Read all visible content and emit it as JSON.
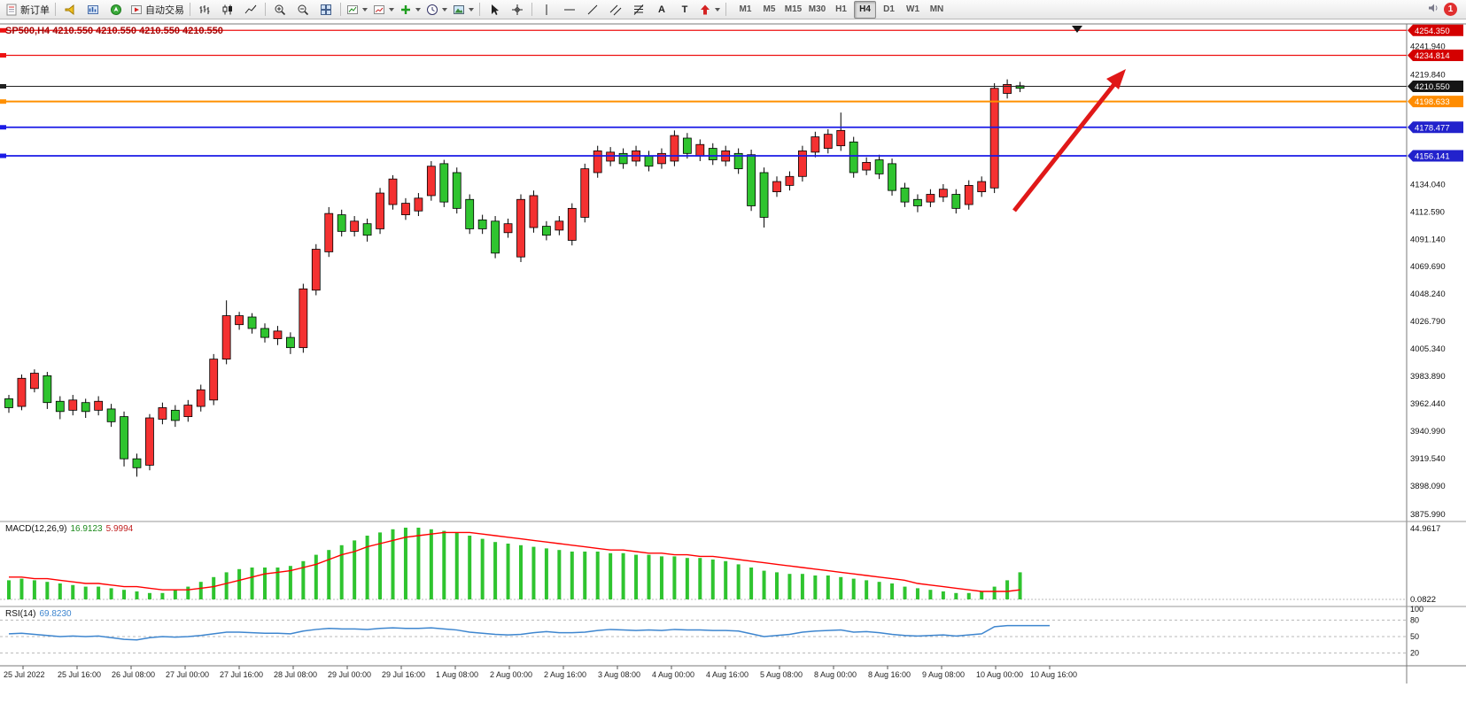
{
  "toolbar": {
    "new_order_label": "新订单",
    "auto_trading_label": "自动交易",
    "text_tool": "A",
    "label_tool": "T",
    "timeframes": [
      "M1",
      "M5",
      "M15",
      "M30",
      "H1",
      "H4",
      "D1",
      "W1",
      "MN"
    ],
    "active_timeframe": "H4",
    "notification_count": "1",
    "icons": [
      "new-order-icon",
      "horn-icon",
      "market-watch-icon",
      "navigator-icon",
      "auto-trading-icon",
      "bar-chart-icon",
      "candlestick-chart-icon",
      "line-chart-icon",
      "zoom-in-icon",
      "zoom-out-icon",
      "tile-windows-icon",
      "new-chart-icon",
      "profiles-icon",
      "indicators-plus-icon",
      "periods-clock-icon",
      "templates-icon",
      "cursor-icon",
      "crosshair-icon",
      "vertical-line-icon",
      "horizontal-line-icon",
      "trend-line-icon",
      "channel-icon",
      "fibonacci-icon",
      "text-icon",
      "label-icon",
      "shapes-arrow-icon",
      "speaker-icon"
    ]
  },
  "chart_data": {
    "type": "candlestick",
    "title": "SP500,H4 4210.550 4210.550 4210.550 4210.550",
    "bull_color": "#f43131",
    "bear_color": "#2fc42f",
    "arrow_color": "#e01818",
    "candles": [
      [
        3966,
        3969,
        3955,
        3959
      ],
      [
        3960,
        3985,
        3957,
        3982
      ],
      [
        3974,
        3989,
        3971,
        3986
      ],
      [
        3984,
        3987,
        3958,
        3963
      ],
      [
        3964,
        3968,
        3950,
        3956
      ],
      [
        3957,
        3969,
        3953,
        3965
      ],
      [
        3963,
        3966,
        3951,
        3956
      ],
      [
        3957,
        3968,
        3953,
        3964
      ],
      [
        3958,
        3962,
        3944,
        3948
      ],
      [
        3952,
        3956,
        3913,
        3919
      ],
      [
        3919,
        3923,
        3905,
        3912
      ],
      [
        3914,
        3954,
        3910,
        3951
      ],
      [
        3950,
        3963,
        3946,
        3959
      ],
      [
        3957,
        3961,
        3944,
        3949
      ],
      [
        3952,
        3965,
        3948,
        3961
      ],
      [
        3960,
        3977,
        3956,
        3973
      ],
      [
        3965,
        4001,
        3961,
        3997
      ],
      [
        3997,
        4043,
        3993,
        4031
      ],
      [
        4024,
        4034,
        4020,
        4031
      ],
      [
        4030,
        4033,
        4017,
        4021
      ],
      [
        4021,
        4025,
        4010,
        4014
      ],
      [
        4013,
        4023,
        4008,
        4019
      ],
      [
        4014,
        4018,
        4001,
        4006
      ],
      [
        4006,
        4056,
        4002,
        4052
      ],
      [
        4051,
        4087,
        4047,
        4083
      ],
      [
        4081,
        4116,
        4077,
        4111
      ],
      [
        4110,
        4114,
        4093,
        4097
      ],
      [
        4097,
        4109,
        4093,
        4105
      ],
      [
        4103,
        4107,
        4089,
        4094
      ],
      [
        4099,
        4131,
        4095,
        4127
      ],
      [
        4118,
        4141,
        4114,
        4138
      ],
      [
        4110,
        4123,
        4106,
        4119
      ],
      [
        4113,
        4127,
        4109,
        4123
      ],
      [
        4125,
        4152,
        4121,
        4148
      ],
      [
        4150,
        4153,
        4116,
        4120
      ],
      [
        4143,
        4147,
        4111,
        4115
      ],
      [
        4122,
        4126,
        4095,
        4099
      ],
      [
        4106,
        4110,
        4095,
        4099
      ],
      [
        4105,
        4109,
        4076,
        4080
      ],
      [
        4096,
        4107,
        4092,
        4103
      ],
      [
        4077,
        4126,
        4073,
        4122
      ],
      [
        4100,
        4129,
        4096,
        4125
      ],
      [
        4101,
        4105,
        4090,
        4094
      ],
      [
        4098,
        4109,
        4094,
        4105
      ],
      [
        4090,
        4119,
        4086,
        4115
      ],
      [
        4108,
        4150,
        4104,
        4146
      ],
      [
        4143,
        4164,
        4139,
        4160
      ],
      [
        4152,
        4163,
        4148,
        4159
      ],
      [
        4158,
        4162,
        4146,
        4150
      ],
      [
        4152,
        4164,
        4148,
        4160
      ],
      [
        4156,
        4160,
        4144,
        4148
      ],
      [
        4150,
        4162,
        4146,
        4158
      ],
      [
        4152,
        4176,
        4148,
        4172
      ],
      [
        4170,
        4174,
        4154,
        4158
      ],
      [
        4156,
        4169,
        4152,
        4165
      ],
      [
        4162,
        4166,
        4149,
        4153
      ],
      [
        4152,
        4164,
        4148,
        4160
      ],
      [
        4158,
        4162,
        4142,
        4146
      ],
      [
        4157,
        4161,
        4113,
        4117
      ],
      [
        4143,
        4147,
        4100,
        4108
      ],
      [
        4128,
        4140,
        4124,
        4136
      ],
      [
        4133,
        4144,
        4129,
        4140
      ],
      [
        4140,
        4164,
        4136,
        4160
      ],
      [
        4159,
        4175,
        4155,
        4171
      ],
      [
        4162,
        4177,
        4158,
        4173
      ],
      [
        4164,
        4190,
        4160,
        4176
      ],
      [
        4167,
        4171,
        4139,
        4143
      ],
      [
        4145,
        4155,
        4141,
        4151
      ],
      [
        4153,
        4157,
        4138,
        4142
      ],
      [
        4150,
        4154,
        4125,
        4129
      ],
      [
        4131,
        4135,
        4116,
        4120
      ],
      [
        4122,
        4126,
        4112,
        4117
      ],
      [
        4120,
        4130,
        4116,
        4126
      ],
      [
        4124,
        4134,
        4120,
        4130
      ],
      [
        4126,
        4130,
        4111,
        4115
      ],
      [
        4118,
        4137,
        4114,
        4133
      ],
      [
        4128,
        4140,
        4124,
        4136
      ],
      [
        4131,
        4213,
        4127,
        4209
      ],
      [
        4205,
        4216,
        4201,
        4212
      ],
      [
        4211,
        4214,
        4206,
        4209
      ]
    ],
    "level_lines": [
      {
        "price": 4254.35,
        "label": "4254.350",
        "color": "#ee1111",
        "badge": "#d40000",
        "width": 1.2
      },
      {
        "price": 4234.814,
        "label": "4234.814",
        "color": "#ee1111",
        "badge": "#d40000",
        "width": 1.2
      },
      {
        "price": 4210.55,
        "label": "4210.550",
        "color": "#202020",
        "badge": "#151515",
        "width": 1
      },
      {
        "price": 4198.633,
        "label": "4198.633",
        "color": "#ff9000",
        "badge": "#ff8c00",
        "width": 2
      },
      {
        "price": 4178.477,
        "label": "4178.477",
        "color": "#1a1ae6",
        "badge": "#2222cc",
        "width": 1.8
      },
      {
        "price": 4156.141,
        "label": "4156.141",
        "color": "#1a1ae6",
        "badge": "#2222cc",
        "width": 1.8
      }
    ],
    "y_axis_labels": [
      "4241.940",
      "4219.840",
      "4134.040",
      "4112.590",
      "4091.140",
      "4069.690",
      "4048.240",
      "4026.790",
      "4005.340",
      "3983.890",
      "3962.440",
      "3940.990",
      "3919.540",
      "3898.090",
      "3875.990"
    ],
    "x_axis_labels": [
      "25 Jul 2022",
      "25 Jul 16:00",
      "26 Jul 08:00",
      "27 Jul 00:00",
      "27 Jul 16:00",
      "28 Jul 08:00",
      "29 Jul 00:00",
      "29 Jul 16:00",
      "1 Aug 08:00",
      "2 Aug 00:00",
      "2 Aug 16:00",
      "3 Aug 08:00",
      "4 Aug 00:00",
      "4 Aug 16:00",
      "5 Aug 08:00",
      "8 Aug 00:00",
      "8 Aug 16:00",
      "9 Aug 08:00",
      "10 Aug 00:00",
      "10 Aug 16:00"
    ],
    "macd": {
      "name": "MACD(12,26,9)",
      "value_main": "16.9123",
      "value_signal": "5.9994",
      "hist_color": "#2fc42f",
      "signal_color": "#ff0000",
      "axis_labels": [
        "44.9617",
        "0.0822"
      ],
      "histogram": [
        12,
        13,
        12,
        11,
        10,
        9,
        8,
        8,
        7,
        6,
        5,
        4,
        4,
        6,
        8,
        11,
        14,
        17,
        19,
        20,
        20,
        20,
        21,
        24,
        28,
        31,
        34,
        37,
        40,
        42,
        44,
        45,
        45,
        44,
        43,
        42,
        40,
        38,
        36,
        35,
        34,
        33,
        32,
        31,
        30,
        30,
        30,
        29,
        29,
        28,
        28,
        27,
        27,
        26,
        26,
        25,
        24,
        22,
        20,
        18,
        17,
        16,
        16,
        15,
        15,
        14,
        13,
        12,
        11,
        10,
        8,
        7,
        6,
        5,
        4,
        4,
        5,
        8,
        12,
        17
      ],
      "signal": [
        14,
        14,
        13,
        13,
        12,
        11,
        10,
        10,
        9,
        8,
        8,
        7,
        6,
        6,
        6,
        7,
        8,
        10,
        12,
        14,
        16,
        17,
        18,
        20,
        22,
        25,
        28,
        30,
        33,
        35,
        37,
        39,
        40,
        41,
        42,
        42,
        42,
        41,
        40,
        39,
        38,
        37,
        36,
        35,
        34,
        33,
        32,
        31,
        31,
        30,
        29,
        29,
        28,
        28,
        27,
        27,
        26,
        25,
        24,
        23,
        22,
        21,
        20,
        19,
        18,
        17,
        16,
        15,
        14,
        13,
        12,
        10,
        9,
        8,
        7,
        6,
        5,
        5,
        5,
        6
      ]
    },
    "rsi": {
      "name": "RSI(14)",
      "value": "69.8230",
      "line_color": "#3e86cf",
      "levels": [
        80,
        50,
        20
      ],
      "axis_labels": [
        "100",
        "80",
        "50",
        "20"
      ],
      "values": [
        55,
        56,
        54,
        52,
        50,
        51,
        50,
        51,
        48,
        45,
        44,
        48,
        50,
        49,
        50,
        52,
        55,
        58,
        58,
        57,
        56,
        56,
        55,
        60,
        63,
        65,
        64,
        64,
        63,
        65,
        66,
        65,
        65,
        66,
        64,
        62,
        58,
        56,
        54,
        53,
        54,
        57,
        59,
        57,
        57,
        58,
        61,
        63,
        62,
        61,
        62,
        61,
        63,
        62,
        62,
        61,
        61,
        60,
        55,
        50,
        52,
        54,
        58,
        60,
        61,
        62,
        58,
        59,
        57,
        54,
        52,
        51,
        52,
        53,
        51,
        53,
        55,
        68,
        70,
        70
      ]
    }
  }
}
